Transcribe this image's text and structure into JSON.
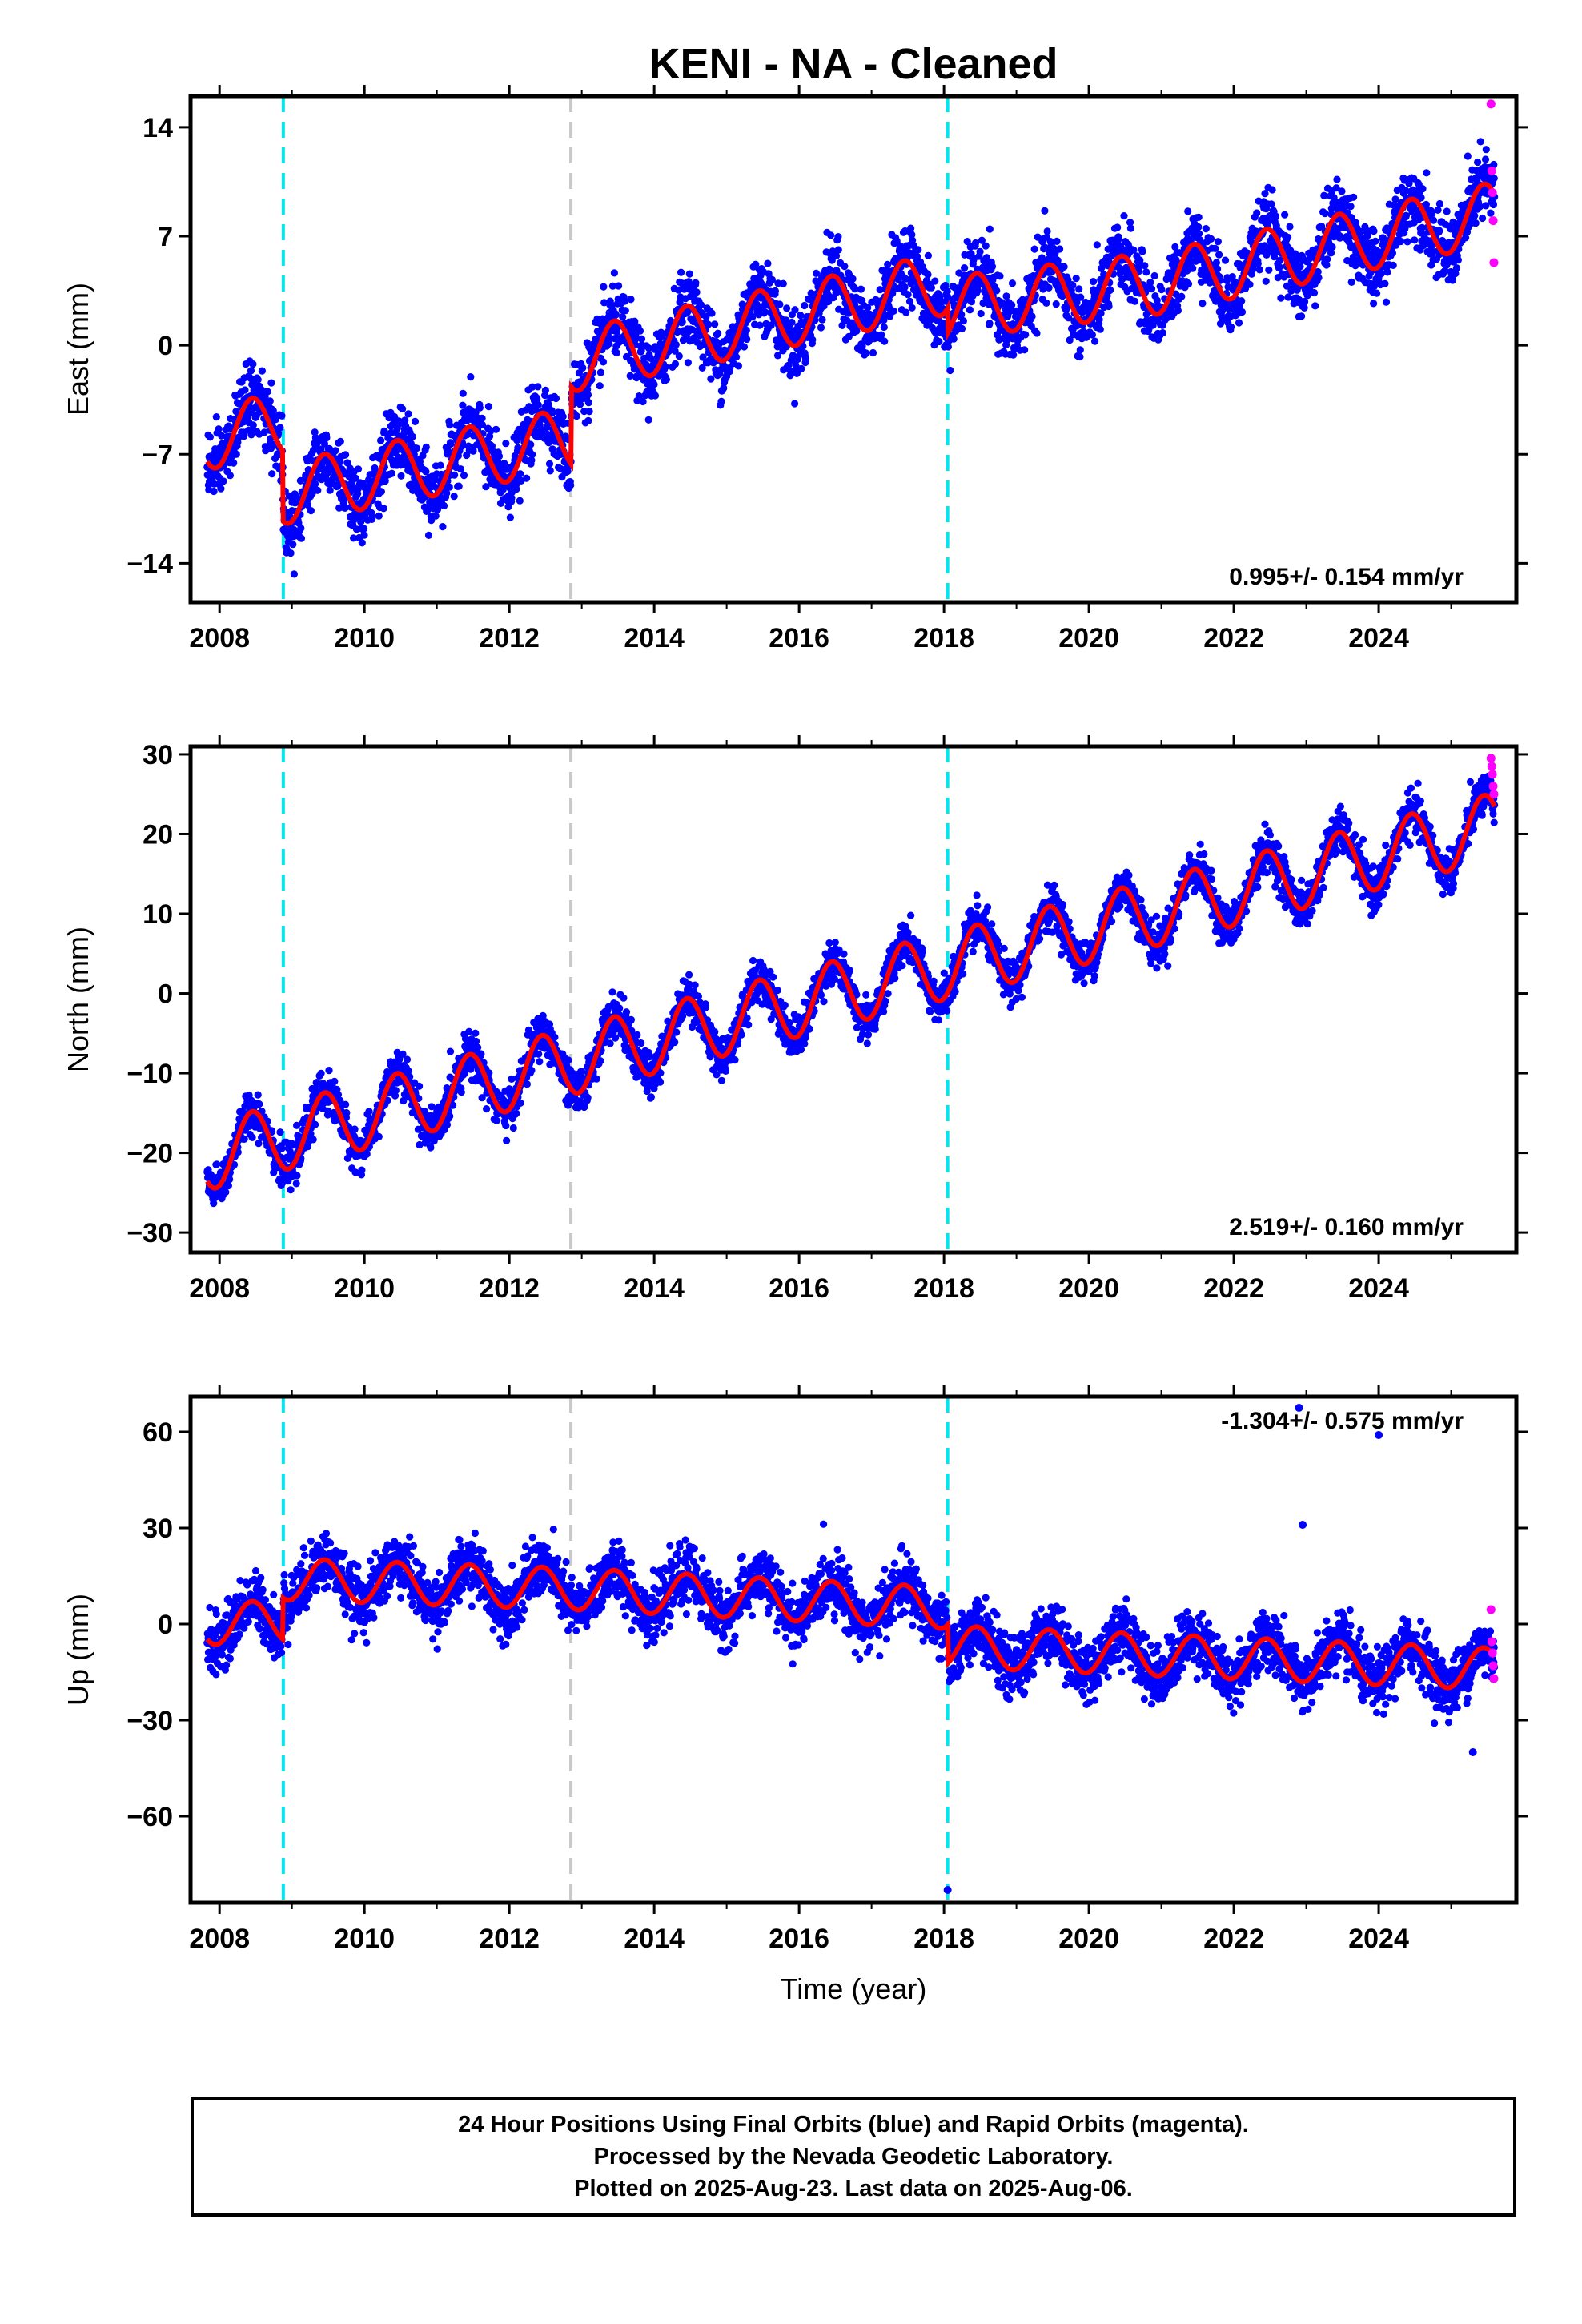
{
  "title": "KENI  - NA - Cleaned",
  "footer": {
    "line1": "24 Hour Positions Using Final Orbits (blue) and Rapid Orbits (magenta).",
    "line2": "Processed by the Nevada Geodetic Laboratory.",
    "line3": "Plotted on 2025-Aug-23. Last data on 2025-Aug-06."
  },
  "colors": {
    "final_orbits": "#0000ff",
    "rapid_orbits": "#ff00ff",
    "model": "#ff0000",
    "equipment_change": "#00e5ee",
    "other_event": "#c8c8c8"
  },
  "chart_data": [
    {
      "type": "scatter",
      "name": "east",
      "ylabel": "East (mm)",
      "xlabel": "",
      "xlim": [
        2007.6,
        2025.9
      ],
      "ylim": [
        -16.5,
        16
      ],
      "xticks": [
        2008,
        2010,
        2012,
        2014,
        2016,
        2018,
        2020,
        2022,
        2024
      ],
      "yticks": [
        -14,
        -7,
        0,
        7,
        14
      ],
      "annotation": "0.995+/- 0.154 mm/yr",
      "annotation_position": "bottom-right",
      "data_start": 2007.83,
      "data_end": 2025.6,
      "model_knots": {
        "x": [
          2007.83,
          2008.87,
          2008.88,
          2012.85,
          2012.86,
          2018.05,
          2018.06,
          2020.95,
          2025.6
        ],
        "y": [
          -6.0,
          -5.0,
          -9.5,
          -6.0,
          -1.0,
          4.0,
          2.4,
          4.0,
          8.5
        ]
      },
      "seasonal_amplitude": 2.0,
      "scatter_sd": 1.1,
      "rapid_points": {
        "x": [
          2025.55,
          2025.56,
          2025.57,
          2025.58,
          2025.59
        ],
        "y": [
          15.5,
          11.2,
          9.8,
          8.0,
          5.3
        ]
      }
    },
    {
      "type": "scatter",
      "name": "north",
      "ylabel": "North (mm)",
      "xlabel": "",
      "xlim": [
        2007.6,
        2025.9
      ],
      "ylim": [
        -32.5,
        31
      ],
      "xticks": [
        2008,
        2010,
        2012,
        2014,
        2016,
        2018,
        2020,
        2022,
        2024
      ],
      "yticks": [
        -30,
        -20,
        -10,
        0,
        10,
        20,
        30
      ],
      "annotation": "2.519+/- 0.160 mm/yr",
      "annotation_position": "bottom-right",
      "data_start": 2007.83,
      "data_end": 2025.6,
      "model_knots": {
        "x": [
          2007.83,
          2008.87,
          2008.88,
          2012.85,
          2012.86,
          2018.05,
          2018.06,
          2025.6
        ],
        "y": [
          -20.5,
          -18.0,
          -18.0,
          -8.5,
          -8.5,
          3.5,
          3.5,
          21.0
        ]
      },
      "seasonal_amplitude": 4.2,
      "scatter_sd": 1.3,
      "rapid_points": {
        "x": [
          2025.55,
          2025.56,
          2025.57,
          2025.58,
          2025.59
        ],
        "y": [
          29.5,
          28.5,
          27.5,
          26.0,
          25.0
        ]
      }
    },
    {
      "type": "scatter",
      "name": "up",
      "ylabel": "Up (mm)",
      "xlabel": "Time (year)",
      "xlim": [
        2007.6,
        2025.9
      ],
      "ylim": [
        -87,
        71
      ],
      "xticks": [
        2008,
        2010,
        2012,
        2014,
        2016,
        2018,
        2020,
        2022,
        2024
      ],
      "yticks": [
        -60,
        -30,
        0,
        30,
        60
      ],
      "annotation": "-1.304+/- 0.575 mm/yr",
      "annotation_position": "top-right",
      "data_start": 2007.83,
      "data_end": 2025.6,
      "model_knots": {
        "x": [
          2007.83,
          2008.87,
          2008.88,
          2012.85,
          2012.86,
          2018.05,
          2018.06,
          2025.6
        ],
        "y": [
          0.0,
          1.0,
          14.0,
          11.0,
          11.0,
          5.0,
          -7.0,
          -14.0
        ]
      },
      "seasonal_amplitude": 6.5,
      "scatter_sd": 4.5,
      "rapid_points": {
        "x": [
          2025.55,
          2025.56,
          2025.57,
          2025.58,
          2025.59
        ],
        "y": [
          4.5,
          -5.5,
          -9.0,
          -13.0,
          -17.0
        ]
      },
      "outliers": {
        "x": [
          2018.05,
          2022.9,
          2022.95,
          2024.0,
          2025.3
        ],
        "y": [
          -83.0,
          67.5,
          31.0,
          59.0,
          -40.0
        ]
      }
    }
  ],
  "event_lines": [
    {
      "year": 2008.88,
      "type": "equipment_change"
    },
    {
      "year": 2012.85,
      "type": "other_event"
    },
    {
      "year": 2018.05,
      "type": "equipment_change"
    }
  ]
}
